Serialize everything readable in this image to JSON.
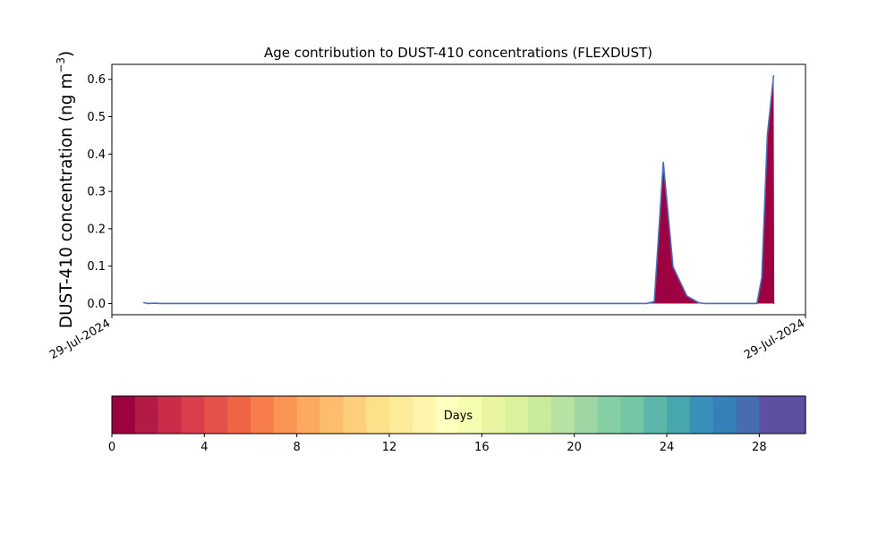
{
  "chart_data": {
    "type": "area",
    "title": "Age contribution to DUST-410 concentrations (FLEXDUST)",
    "ylabel": "DUST-410 concentration (ng m",
    "ylabel_unit_superscript": "−3",
    "ylabel_unit_close": ")",
    "xlabel": "",
    "x_tick_labels": [
      "29-Jul-2024",
      "29-Jul-2024"
    ],
    "y_ticks": [
      0.0,
      0.1,
      0.2,
      0.3,
      0.4,
      0.5,
      0.6
    ],
    "y_tick_labels": [
      "0.0",
      "0.1",
      "0.2",
      "0.3",
      "0.4",
      "0.5",
      "0.6"
    ],
    "ylim": [
      -0.03,
      0.64
    ],
    "xlim": [
      0,
      1
    ],
    "grid": false,
    "series": [
      {
        "fill_color": "#9e0142",
        "line_color": "#4a6fb5",
        "points": [
          [
            0.046,
            0.002
          ],
          [
            0.052,
            0.0
          ],
          [
            0.063,
            0.001
          ],
          [
            0.068,
            0.0
          ],
          [
            0.1,
            0.0
          ],
          [
            0.3,
            0.0
          ],
          [
            0.5,
            0.0
          ],
          [
            0.7,
            0.0
          ],
          [
            0.771,
            0.0
          ],
          [
            0.782,
            0.005
          ],
          [
            0.795,
            0.378
          ],
          [
            0.809,
            0.098
          ],
          [
            0.829,
            0.02
          ],
          [
            0.846,
            0.002
          ],
          [
            0.854,
            0.0
          ],
          [
            0.93,
            0.0
          ],
          [
            0.937,
            0.07
          ],
          [
            0.945,
            0.45
          ],
          [
            0.954,
            0.61
          ],
          [
            0.955,
            0.0
          ]
        ]
      }
    ],
    "colorbar": {
      "label": "Days",
      "min": 0,
      "max": 30,
      "tick_values": [
        0,
        4,
        8,
        12,
        16,
        20,
        24,
        28
      ],
      "tick_labels": [
        "0",
        "4",
        "8",
        "12",
        "16",
        "20",
        "24",
        "28"
      ],
      "colors": [
        "#9e0142",
        "#b41a47",
        "#c92d4a",
        "#da3d4b",
        "#e4514a",
        "#ef6445",
        "#f67d4b",
        "#f99455",
        "#fca960",
        "#fdbd6d",
        "#fdcf7d",
        "#fee08b",
        "#feeb9a",
        "#fff4a9",
        "#fefebe",
        "#f5fbaf",
        "#e9f69f",
        "#dbf19c",
        "#caea9e",
        "#b7e2a1",
        "#9fd7a4",
        "#86cea4",
        "#72c6a5",
        "#5cb6a9",
        "#47a6ae",
        "#3990b9",
        "#3680b9",
        "#456db0",
        "#5d4fa2",
        "#5e4fa2"
      ]
    }
  }
}
